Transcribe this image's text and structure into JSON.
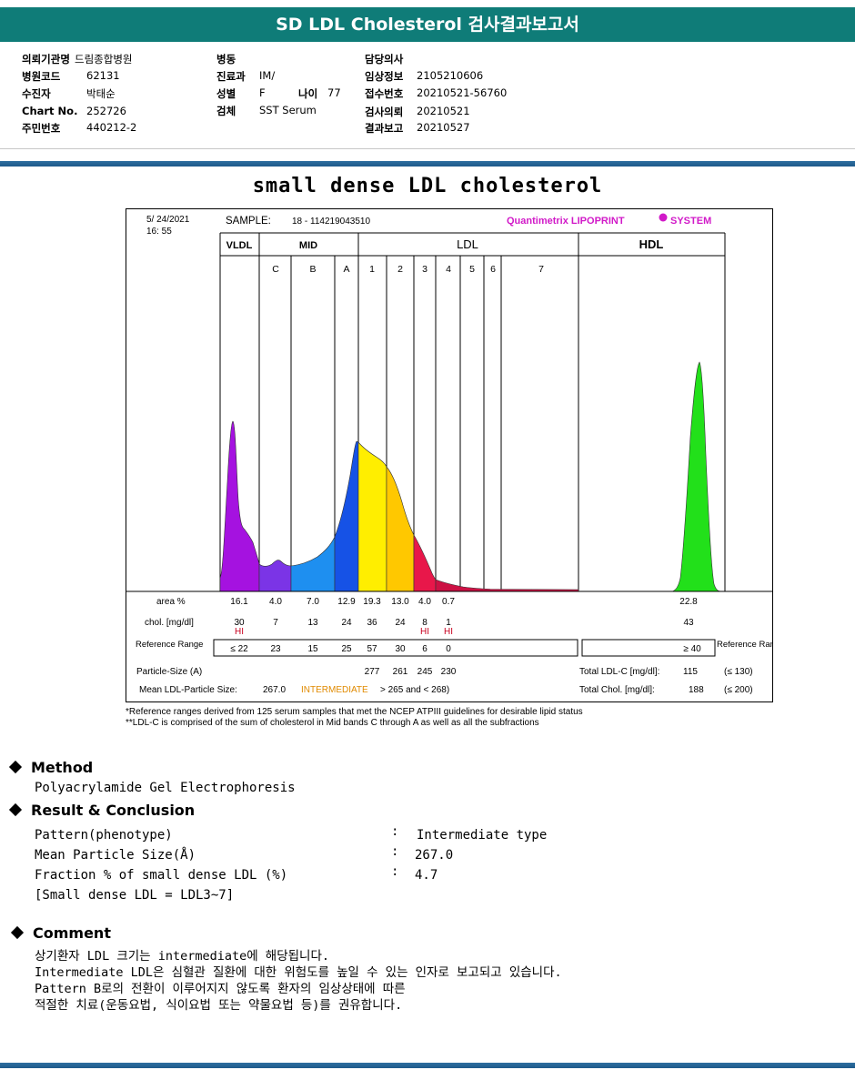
{
  "report_title": "SD LDL Cholesterol 검사결과보고서",
  "header": {
    "col1": [
      {
        "label": "의뢰기관명",
        "value": "드림종합병원"
      },
      {
        "label": "병원코드",
        "value": "62131"
      },
      {
        "label": "수진자",
        "value": "박태순"
      },
      {
        "label": "Chart No.",
        "value": "252726"
      },
      {
        "label": "주민번호",
        "value": "440212-2"
      }
    ],
    "col2": [
      {
        "label": "병동",
        "value": ""
      },
      {
        "label": "진료과",
        "value": "IM/"
      },
      {
        "label": "성별",
        "value": "F"
      },
      {
        "label": "검체",
        "value": "SST Serum"
      }
    ],
    "age_label": "나이",
    "age_value": "77",
    "col3": [
      {
        "label": "담당의사",
        "value": ""
      },
      {
        "label": "임상정보",
        "value": "2105210606"
      },
      {
        "label": "접수번호",
        "value": "20210521-56760"
      },
      {
        "label": "검사의뢰",
        "value": "20210521"
      },
      {
        "label": "결과보고",
        "value": "20210527"
      }
    ]
  },
  "subtitle": "small dense LDL cholesterol",
  "chart_data": {
    "type": "area",
    "date": "5/ 24/2021",
    "time": "16: 55",
    "sample_label": "SAMPLE:",
    "sample_id": "18 - 114219043510",
    "brand": "Quantimetrix LIPOPRINT",
    "brand_suffix": "SYSTEM",
    "groups": [
      "VLDL",
      "MID",
      "LDL",
      "HDL"
    ],
    "bands": [
      "C",
      "B",
      "A",
      "1",
      "2",
      "3",
      "4",
      "5",
      "6",
      "7"
    ],
    "colors": {
      "VLDL": "#a512e0",
      "C": "#7b34e6",
      "B": "#1e8ff0",
      "A": "#1652e6",
      "1": "#ffee00",
      "2": "#ffc800",
      "3": "#e8174a",
      "rest": "#cc1144",
      "HDL": "#22e01a"
    },
    "row_labels": {
      "area": "area %",
      "chol": "chol. [mg/dl]",
      "ref": "Reference Range",
      "particle": "Particle-Size (A)",
      "mean": "Mean LDL-Particle Size:"
    },
    "area_pct": {
      "VLDL": "16.1",
      "C": "4.0",
      "B": "7.0",
      "A": "12.9",
      "1": "19.3",
      "2": "13.0",
      "3": "4.0",
      "4": "0.7",
      "HDL": "22.8"
    },
    "chol": {
      "VLDL": "30",
      "C": "7",
      "B": "13",
      "A": "24",
      "1": "36",
      "2": "24",
      "3": "8",
      "4": "1",
      "HDL": "43"
    },
    "hi_flags": [
      "VLDL",
      "3",
      "4"
    ],
    "hi_text": "HI",
    "ref_range": {
      "VLDL": "≤ 22",
      "C": "23",
      "B": "15",
      "A": "25",
      "1": "57",
      "2": "30",
      "3": "6",
      "4": "0",
      "HDL": "≥ 40"
    },
    "particle_size": {
      "1": "277",
      "2": "261",
      "3": "245",
      "4": "230"
    },
    "mean_size_value": "267.0",
    "mean_size_class": "INTERMEDIATE",
    "mean_size_note": "> 265 and < 268)",
    "total_ldl_label": "Total LDL-C [mg/dl]:",
    "total_ldl": "115",
    "total_ldl_ref": "(≤ 130)",
    "total_chol_label": "Total Chol. [mg/dl]:",
    "total_chol": "188",
    "total_chol_ref": "(≤ 200)"
  },
  "footnotes": [
    "*Reference ranges derived from 125 serum samples that met the NCEP ATPIII guidelines for desirable lipid status",
    "**LDL-C is comprised of the sum of cholesterol in Mid bands C through A as well as all the subfractions"
  ],
  "method": {
    "heading": "Method",
    "text": "Polyacrylamide Gel Electrophoresis"
  },
  "result": {
    "heading": "Result & Conclusion",
    "rows": [
      {
        "label": "Pattern(phenotype)",
        "value": "Intermediate type"
      },
      {
        "label": "Mean Particle Size(Å)",
        "value": "267.0"
      },
      {
        "label": "Fraction % of small dense LDL (%)",
        "value": "4.7"
      }
    ],
    "note": "[Small dense LDL = LDL3~7]"
  },
  "comment": {
    "heading": "Comment",
    "lines": [
      "상기환자 LDL 크기는 intermediate에 해당됩니다.",
      "Intermediate LDL은 심혈관 질환에 대한 위험도를 높일 수 있는 인자로 보고되고 있습니다.",
      "Pattern B로의 전환이 이루어지지 않도록 환자의 임상상태에 따른",
      "적절한 치료(운동요법, 식이요법 또는 약물요법 등)를 권유합니다."
    ]
  }
}
